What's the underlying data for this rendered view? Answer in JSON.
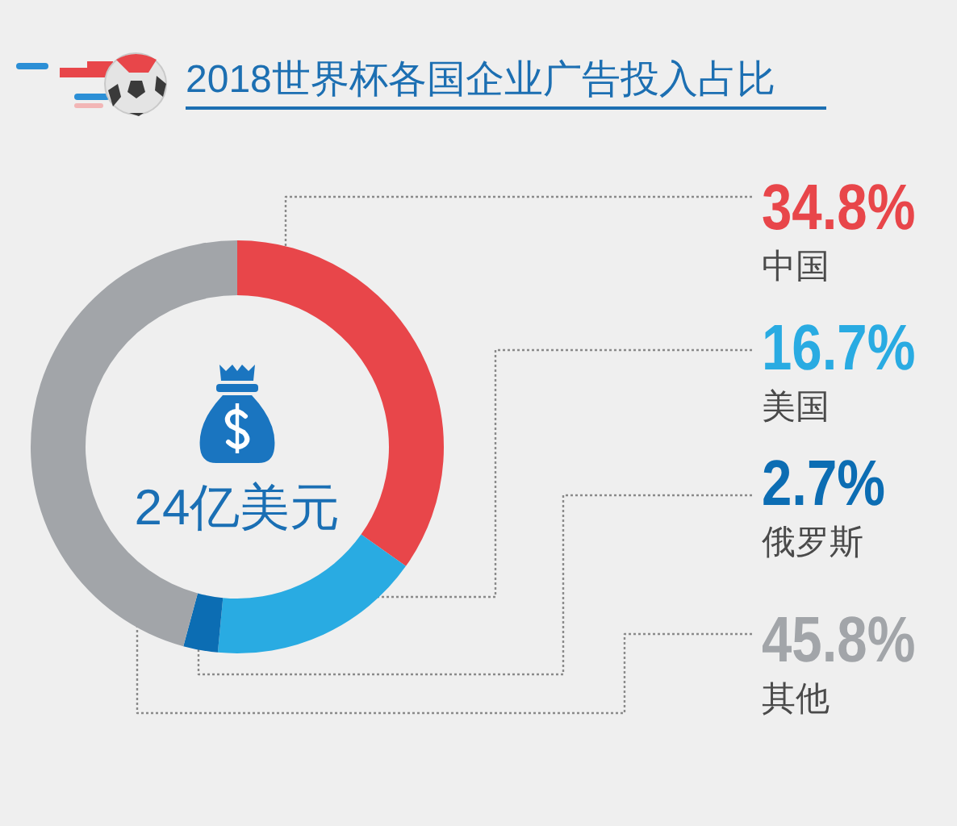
{
  "chart_data": {
    "type": "donut",
    "title": "2018世界杯各国企业广告投入占比",
    "categories": [
      "中国",
      "美国",
      "俄罗斯",
      "其他"
    ],
    "values": [
      34.8,
      16.7,
      2.7,
      45.8
    ],
    "colors": [
      "#e8464a",
      "#29abe2",
      "#0c6db3",
      "#a2a5a9"
    ],
    "value_labels": [
      "34.8%",
      "16.7%",
      "2.7%",
      "45.8%"
    ],
    "annotations": [
      "24亿美元"
    ]
  }
}
